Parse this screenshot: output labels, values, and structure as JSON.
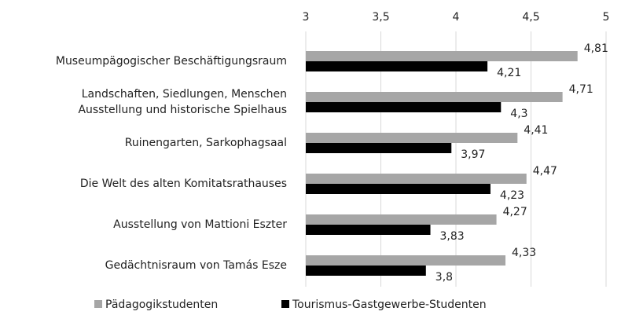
{
  "chart_data": {
    "type": "bar",
    "orientation": "horizontal",
    "categories": [
      "Museumpägogischer Beschäftigungsraum",
      "Landschaften, Siedlungen, Menschen\nAusstellung und historische Spielhaus",
      "Ruinengarten, Sarkophagsaal",
      "Die Welt des alten Komitatsrathauses",
      "Ausstellung von Mattioni Eszter",
      "Gedächtnisraum von Tamás Esze"
    ],
    "series": [
      {
        "name": "Pädagogikstudenten",
        "color": "#a6a6a6",
        "values": [
          4.81,
          4.71,
          4.41,
          4.47,
          4.27,
          4.33
        ],
        "value_labels": [
          "4,81",
          "4,71",
          "4,41",
          "4,47",
          "4,27",
          "4,33"
        ]
      },
      {
        "name": "Tourismus-Gastgewerbe-Studenten",
        "color": "#000000",
        "values": [
          4.21,
          4.3,
          3.97,
          4.23,
          3.83,
          3.8
        ],
        "value_labels": [
          "4,21",
          "4,3",
          "3,97",
          "4,23",
          "3,83",
          "3,8"
        ]
      }
    ],
    "xlim": [
      3,
      5
    ],
    "xticks": [
      3,
      {
        "value": 3.5,
        "label": "3,5"
      },
      4,
      {
        "value": 4.5,
        "label": "4,5"
      },
      5
    ],
    "grid": true,
    "legend": "bottom"
  }
}
